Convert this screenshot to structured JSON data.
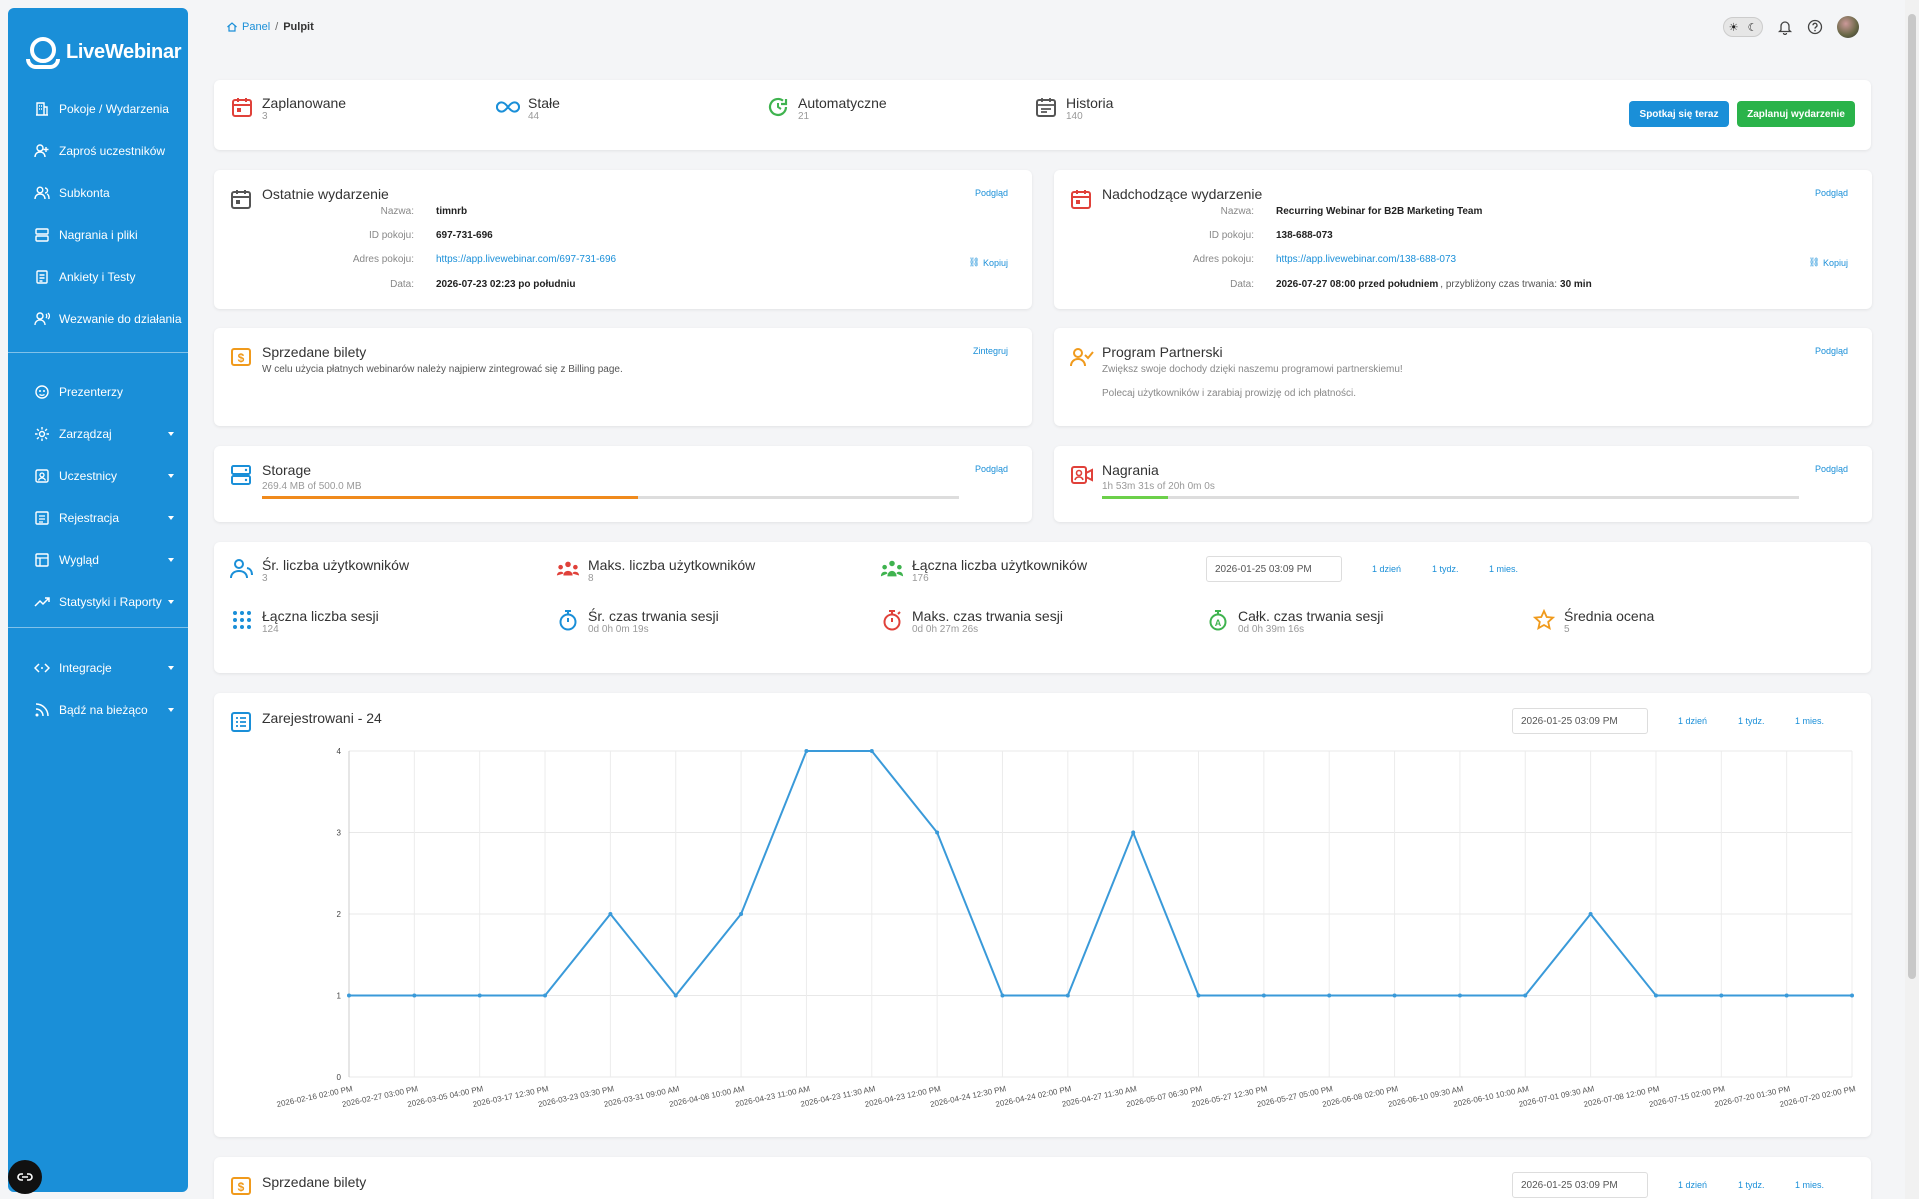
{
  "app": {
    "name": "LiveWebinar"
  },
  "sidebar": {
    "items": [
      {
        "label": "Pokoje / Wydarzenia"
      },
      {
        "label": "Zaproś uczestników"
      },
      {
        "label": "Subkonta"
      },
      {
        "label": "Nagrania i pliki"
      },
      {
        "label": "Ankiety i Testy"
      },
      {
        "label": "Wezwanie do działania"
      },
      {
        "label": "Prezenterzy"
      },
      {
        "label": "Zarządzaj"
      },
      {
        "label": "Uczestnicy"
      },
      {
        "label": "Rejestracja"
      },
      {
        "label": "Wygląd"
      },
      {
        "label": "Statystyki i Raporty"
      },
      {
        "label": "Integracje"
      },
      {
        "label": "Bądź na bieżąco"
      }
    ]
  },
  "breadcrumb": {
    "home": "Panel",
    "current": "Pulpit"
  },
  "summary": {
    "items": [
      {
        "label": "Zaplanowane",
        "value": "3"
      },
      {
        "label": "Stałe",
        "value": "44"
      },
      {
        "label": "Automatyczne",
        "value": "21"
      },
      {
        "label": "Historia",
        "value": "140"
      }
    ],
    "meet_now": "Spotkaj się teraz",
    "schedule": "Zaplanuj wydarzenie"
  },
  "last_event": {
    "title": "Ostatnie wydarzenie",
    "preview": "Podgląd",
    "copy": "Kopiuj",
    "rows": [
      {
        "k": "Nazwa:",
        "v": "timnrb"
      },
      {
        "k": "ID pokoju:",
        "v": "697-731-696"
      },
      {
        "k": "Adres pokoju:",
        "v": "https://app.livewebinar.com/697-731-696"
      },
      {
        "k": "Data:",
        "v": "2026-07-23 02:23 po południu"
      }
    ]
  },
  "next_event": {
    "title": "Nadchodzące wydarzenie",
    "preview": "Podgląd",
    "copy": "Kopiuj",
    "rows": [
      {
        "k": "Nazwa:",
        "v": "Recurring Webinar for B2B Marketing Team"
      },
      {
        "k": "ID pokoju:",
        "v": "138-688-073"
      },
      {
        "k": "Adres pokoju:",
        "v": "https://app.livewebinar.com/138-688-073"
      },
      {
        "k": "Data:",
        "v": "2026-07-27 08:00 przed południem"
      }
    ],
    "duration_label": ", przybliżony czas trwania:",
    "duration": "30 min"
  },
  "tickets": {
    "title": "Sprzedane bilety",
    "link": "Zintegruj",
    "text": "W celu użycia płatnych webinarów należy najpierw zintegrować się z Billing page."
  },
  "partner": {
    "title": "Program Partnerski",
    "link": "Podgląd",
    "line1": "Zwiększ swoje dochody dzięki naszemu programowi partnerskiemu!",
    "line2": "Polecaj użytkowników i zarabiaj prowizję od ich płatności."
  },
  "storage": {
    "title": "Storage",
    "link": "Podgląd",
    "text": "269.4 MB of 500.0 MB",
    "fraction": 0.539,
    "color": "#f08a1c"
  },
  "recordings": {
    "title": "Nagrania",
    "link": "Podgląd",
    "text": "1h 53m 31s of 20h 0m 0s",
    "fraction": 0.095,
    "color": "#6cd04a"
  },
  "stats": {
    "items": [
      {
        "label": "Śr. liczba użytkowników",
        "value": "3"
      },
      {
        "label": "Maks. liczba użytkowników",
        "value": "8"
      },
      {
        "label": "Łączna liczba użytkowników",
        "value": "176"
      },
      {
        "label": "Łączna liczba sesji",
        "value": "124"
      },
      {
        "label": "Śr. czas trwania sesji",
        "value": "0d 0h 0m 19s"
      },
      {
        "label": "Maks. czas trwania sesji",
        "value": "0d 0h 27m 26s"
      },
      {
        "label": "Całk. czas trwania sesji",
        "value": "0d 0h 39m 16s"
      },
      {
        "label": "Średnia ocena",
        "value": "5"
      }
    ],
    "date": "2026-01-25 03:09 PM",
    "ranges": [
      "1 dzień",
      "1 tydz.",
      "1 mies."
    ]
  },
  "registered": {
    "title": "Zarejestrowani - 24",
    "date": "2026-01-25 03:09 PM",
    "ranges": [
      "1 dzień",
      "1 tydz.",
      "1 mies."
    ]
  },
  "bottom": {
    "title": "Sprzedane bilety",
    "date": "2026-01-25 03:09 PM",
    "ranges": [
      "1 dzień",
      "1 tydz.",
      "1 mies."
    ]
  },
  "chart_data": {
    "type": "line",
    "title": "Zarejestrowani - 24",
    "categories": [
      "2026-02-16 02:00 PM",
      "2026-02-27 03:00 PM",
      "2026-03-05 04:00 PM",
      "2026-03-17 12:30 PM",
      "2026-03-23 03:30 PM",
      "2026-03-31 09:00 AM",
      "2026-04-08 10:00 AM",
      "2026-04-23 11:00 AM",
      "2026-04-23 11:30 AM",
      "2026-04-23 12:00 PM",
      "2026-04-24 12:30 PM",
      "2026-04-24 02:00 PM",
      "2026-04-27 11:30 AM",
      "2026-05-07 06:30 PM",
      "2026-05-27 12:30 PM",
      "2026-05-27 05:00 PM",
      "2026-06-08 02:00 PM",
      "2026-06-10 09:30 AM",
      "2026-06-10 10:00 AM",
      "2026-07-01 09:30 AM",
      "2026-07-08 12:00 PM",
      "2026-07-15 02:00 PM",
      "2026-07-20 01:30 PM",
      "2026-07-20 02:00 PM"
    ],
    "values": [
      1,
      1,
      1,
      1,
      2,
      1,
      2,
      4,
      4,
      3,
      1,
      1,
      3,
      1,
      1,
      1,
      1,
      1,
      1,
      2,
      1,
      1,
      1,
      1
    ],
    "ylim": [
      0,
      4
    ],
    "yticks": [
      0,
      1,
      2,
      3,
      4
    ],
    "grid": true,
    "color": "#3a9ad9"
  }
}
